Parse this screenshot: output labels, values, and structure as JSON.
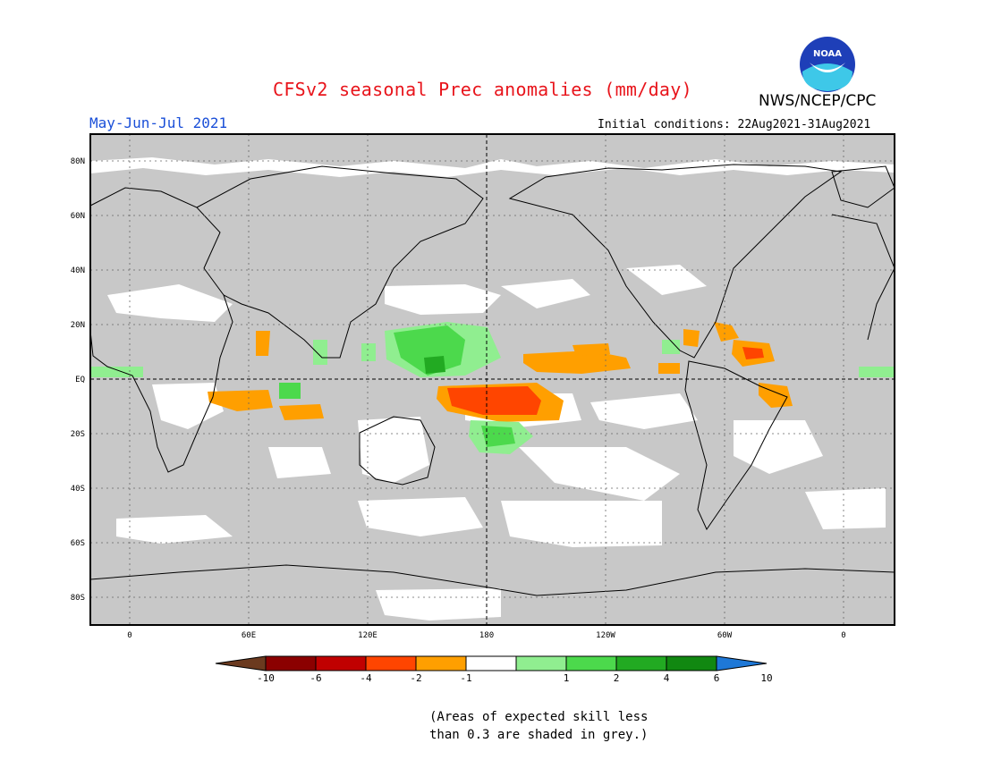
{
  "title": "CFSv2 seasonal Prec anomalies (mm/day)",
  "agency": "NWS/NCEP/CPC",
  "logo_text": "NOAA",
  "period": "May-Jun-Jul 2021",
  "initial_conditions": "Initial conditions: 22Aug2021-31Aug2021",
  "lat_labels": [
    "80N",
    "60N",
    "40N",
    "20N",
    "EQ",
    "20S",
    "40S",
    "60S",
    "80S"
  ],
  "lon_labels": [
    "0",
    "60E",
    "120E",
    "180",
    "120W",
    "60W",
    "0"
  ],
  "colorbar": {
    "labels": [
      "-10",
      "-6",
      "-4",
      "-2",
      "-1",
      "1",
      "2",
      "4",
      "6",
      "10"
    ],
    "colors": [
      "#6b3a1f",
      "#8b0000",
      "#c00000",
      "#ff4500",
      "#ff9f00",
      "#ffffff",
      "#90ee90",
      "#4cd94c",
      "#22aa22",
      "#118811",
      "#1e78d7"
    ]
  },
  "note": [
    "(Areas of expected skill less",
    "than 0.3 are shaded in grey.)"
  ],
  "colors": {
    "grey_mask": "#c8c8c8",
    "title": "#e8141b",
    "period": "#1a4fd8"
  }
}
